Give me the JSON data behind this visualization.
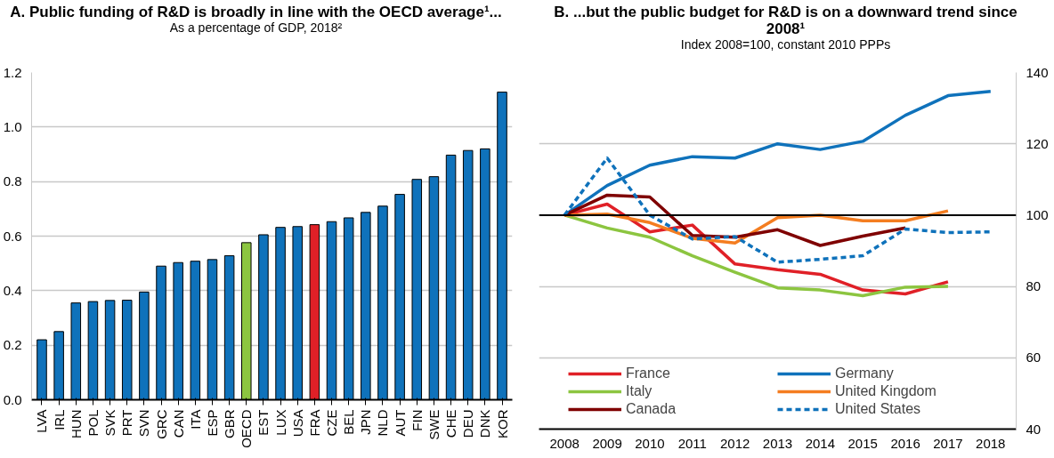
{
  "chart_data": [
    {
      "type": "bar",
      "title": "A. Public funding of R&D is broadly in line with the OECD average¹...",
      "subtitle": "As a percentage of GDP, 2018²",
      "categories": [
        "LVA",
        "IRL",
        "HUN",
        "POL",
        "SVK",
        "PRT",
        "SVN",
        "GRC",
        "CAN",
        "ITA",
        "ESP",
        "GBR",
        "OECD",
        "EST",
        "LUX",
        "USA",
        "FRA",
        "CZE",
        "BEL",
        "JPN",
        "NLD",
        "AUT",
        "FIN",
        "SWE",
        "CHE",
        "DEU",
        "DNK",
        "KOR"
      ],
      "values": [
        0.22,
        0.25,
        0.355,
        0.36,
        0.364,
        0.365,
        0.395,
        0.49,
        0.503,
        0.508,
        0.514,
        0.528,
        0.576,
        0.605,
        0.632,
        0.635,
        0.642,
        0.653,
        0.667,
        0.687,
        0.71,
        0.753,
        0.808,
        0.818,
        0.897,
        0.914,
        0.92,
        1.128
      ],
      "colors": [
        "#0f72bb",
        "#0f72bb",
        "#0f72bb",
        "#0f72bb",
        "#0f72bb",
        "#0f72bb",
        "#0f72bb",
        "#0f72bb",
        "#0f72bb",
        "#0f72bb",
        "#0f72bb",
        "#0f72bb",
        "#8cc540",
        "#0f72bb",
        "#0f72bb",
        "#0f72bb",
        "#e02027",
        "#0f72bb",
        "#0f72bb",
        "#0f72bb",
        "#0f72bb",
        "#0f72bb",
        "#0f72bb",
        "#0f72bb",
        "#0f72bb",
        "#0f72bb",
        "#0f72bb",
        "#0f72bb"
      ],
      "ylim": [
        0,
        1.2
      ],
      "yticks": [
        {
          "value": 0,
          "label": "0.0"
        },
        0.2,
        0.4,
        0.6,
        0.8,
        {
          "value": 1,
          "label": "1.0"
        },
        1.2
      ],
      "grid": "y"
    },
    {
      "type": "line",
      "title": "B. ...but the public budget for R&D is on a downward trend since 2008¹",
      "subtitle": "Index 2008=100, constant 2010 PPPs",
      "categories": [
        "2008",
        "2009",
        "2010",
        "2011",
        "2012",
        "2013",
        "2014",
        "2015",
        "2016",
        "2017",
        "2018"
      ],
      "series": [
        {
          "name": "France",
          "color": "#e02027",
          "values": [
            100,
            103.1,
            95.3,
            97.2,
            86.3,
            84.7,
            83.4,
            79,
            77.9,
            81.3,
            null
          ]
        },
        {
          "name": "Germany",
          "color": "#0f72bb",
          "values": [
            100,
            108.3,
            114,
            116.4,
            116,
            120,
            118.4,
            120.7,
            128,
            133.5,
            134.7
          ]
        },
        {
          "name": "Italy",
          "color": "#8cc540",
          "values": [
            100,
            96.4,
            93.8,
            88.6,
            84,
            79.6,
            79,
            77.4,
            79.8,
            80,
            null
          ]
        },
        {
          "name": "United Kingdom",
          "color": "#f47d20",
          "values": [
            100,
            100.3,
            97.9,
            93.5,
            92.2,
            99.3,
            100,
            98.4,
            98.4,
            101.2,
            null
          ]
        },
        {
          "name": "Canada",
          "color": "#7f0000",
          "values": [
            100,
            105.6,
            105.1,
            94.3,
            93.8,
            95.9,
            91.5,
            94.1,
            96.4,
            null,
            null
          ]
        },
        {
          "name": "United States",
          "color": "#0f72bb",
          "line_style": "dashed",
          "values": [
            100,
            116,
            100,
            93.3,
            94,
            86.8,
            87.6,
            88.6,
            96.1,
            95.1,
            95.3
          ]
        }
      ],
      "ylim": [
        40,
        140
      ],
      "yticks": [
        40,
        60,
        80,
        100,
        120,
        140
      ],
      "grid": "y",
      "legend": "bottom",
      "marker": "none",
      "line_style": "solid",
      "ref_lines": [
        {
          "axis": "y",
          "value": 100,
          "color": "#000000"
        }
      ]
    }
  ]
}
